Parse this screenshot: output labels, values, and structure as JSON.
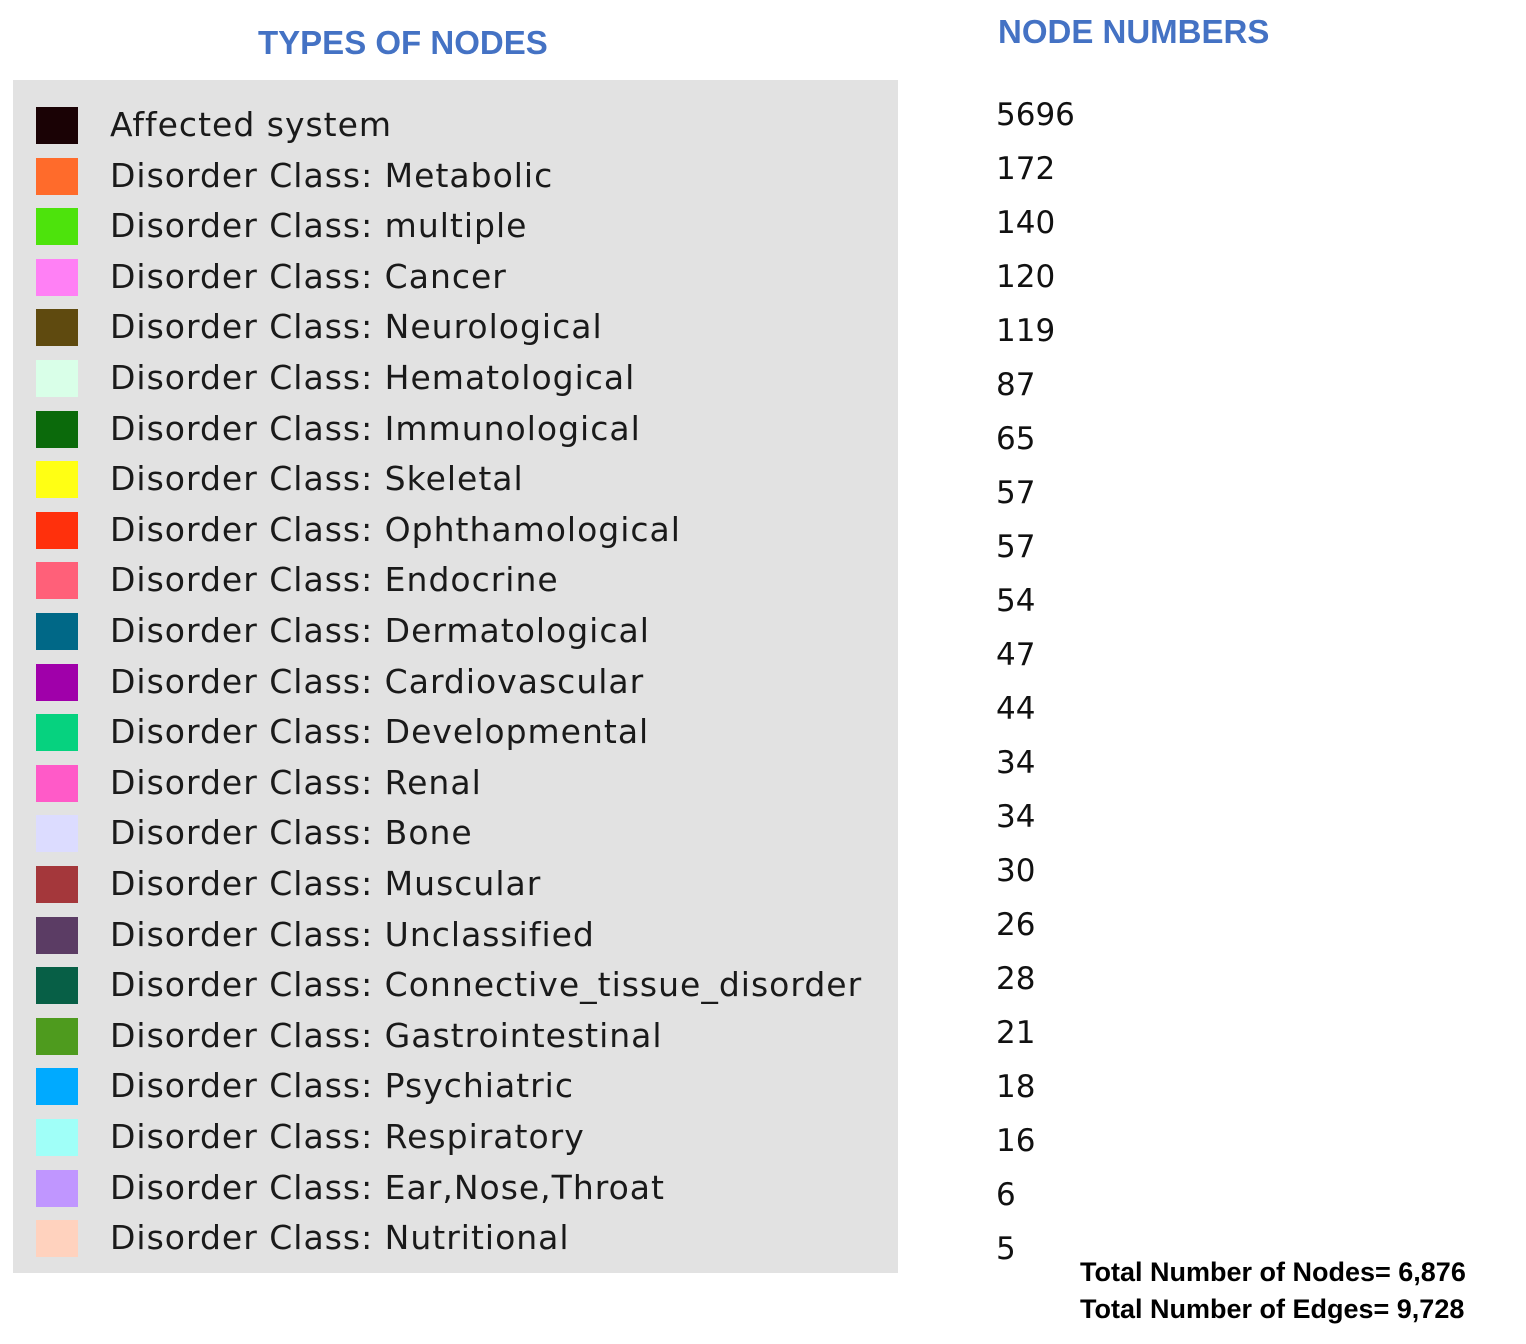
{
  "headings": {
    "types": "TYPES OF NODES",
    "numbers": "NODE NUMBERS"
  },
  "legend": [
    {
      "label": "Affected system",
      "color": "#1a0205"
    },
    {
      "label": "Disorder Class: Metabolic",
      "color": "#ff6b2b"
    },
    {
      "label": "Disorder Class: multiple",
      "color": "#4de30c"
    },
    {
      "label": "Disorder Class: Cancer",
      "color": "#ff80f5"
    },
    {
      "label": "Disorder Class: Neurological",
      "color": "#5f4a0f"
    },
    {
      "label": "Disorder Class: Hematological",
      "color": "#d9ffe8"
    },
    {
      "label": "Disorder Class: Immunological",
      "color": "#0b6a0b"
    },
    {
      "label": "Disorder Class: Skeletal",
      "color": "#ffff14"
    },
    {
      "label": "Disorder Class: Ophthamological",
      "color": "#ff300c"
    },
    {
      "label": "Disorder Class: Endocrine",
      "color": "#ff6079"
    },
    {
      "label": "Disorder Class: Dermatological",
      "color": "#006887"
    },
    {
      "label": "Disorder Class: Cardiovascular",
      "color": "#a000aa"
    },
    {
      "label": "Disorder Class: Developmental",
      "color": "#06d27f"
    },
    {
      "label": "Disorder Class: Renal",
      "color": "#ff5ac8"
    },
    {
      "label": "Disorder Class: Bone",
      "color": "#dcdcff"
    },
    {
      "label": "Disorder Class: Muscular",
      "color": "#a4373b"
    },
    {
      "label": "Disorder Class: Unclassified",
      "color": "#5b3c64"
    },
    {
      "label": "Disorder Class: Connective_tissue_disorder",
      "color": "#075f46"
    },
    {
      "label": "Disorder Class: Gastrointestinal",
      "color": "#4e9b1e"
    },
    {
      "label": "Disorder Class: Psychiatric",
      "color": "#00aaff"
    },
    {
      "label": "Disorder Class: Respiratory",
      "color": "#a0fff8"
    },
    {
      "label": "Disorder Class: Ear,Nose,Throat",
      "color": "#c096ff"
    },
    {
      "label": "Disorder Class: Nutritional",
      "color": "#ffd2be"
    }
  ],
  "counts": [
    "5696",
    "172",
    "140",
    "120",
    "119",
    "87",
    "65",
    "57",
    "57",
    "54",
    "47",
    "44",
    "34",
    "34",
    "30",
    "26",
    "28",
    "21",
    "18",
    "16",
    "6",
    "5"
  ],
  "totals": {
    "nodes": "Total Number of Nodes= 6,876",
    "edges": "Total Number of Edges= 9,728"
  }
}
